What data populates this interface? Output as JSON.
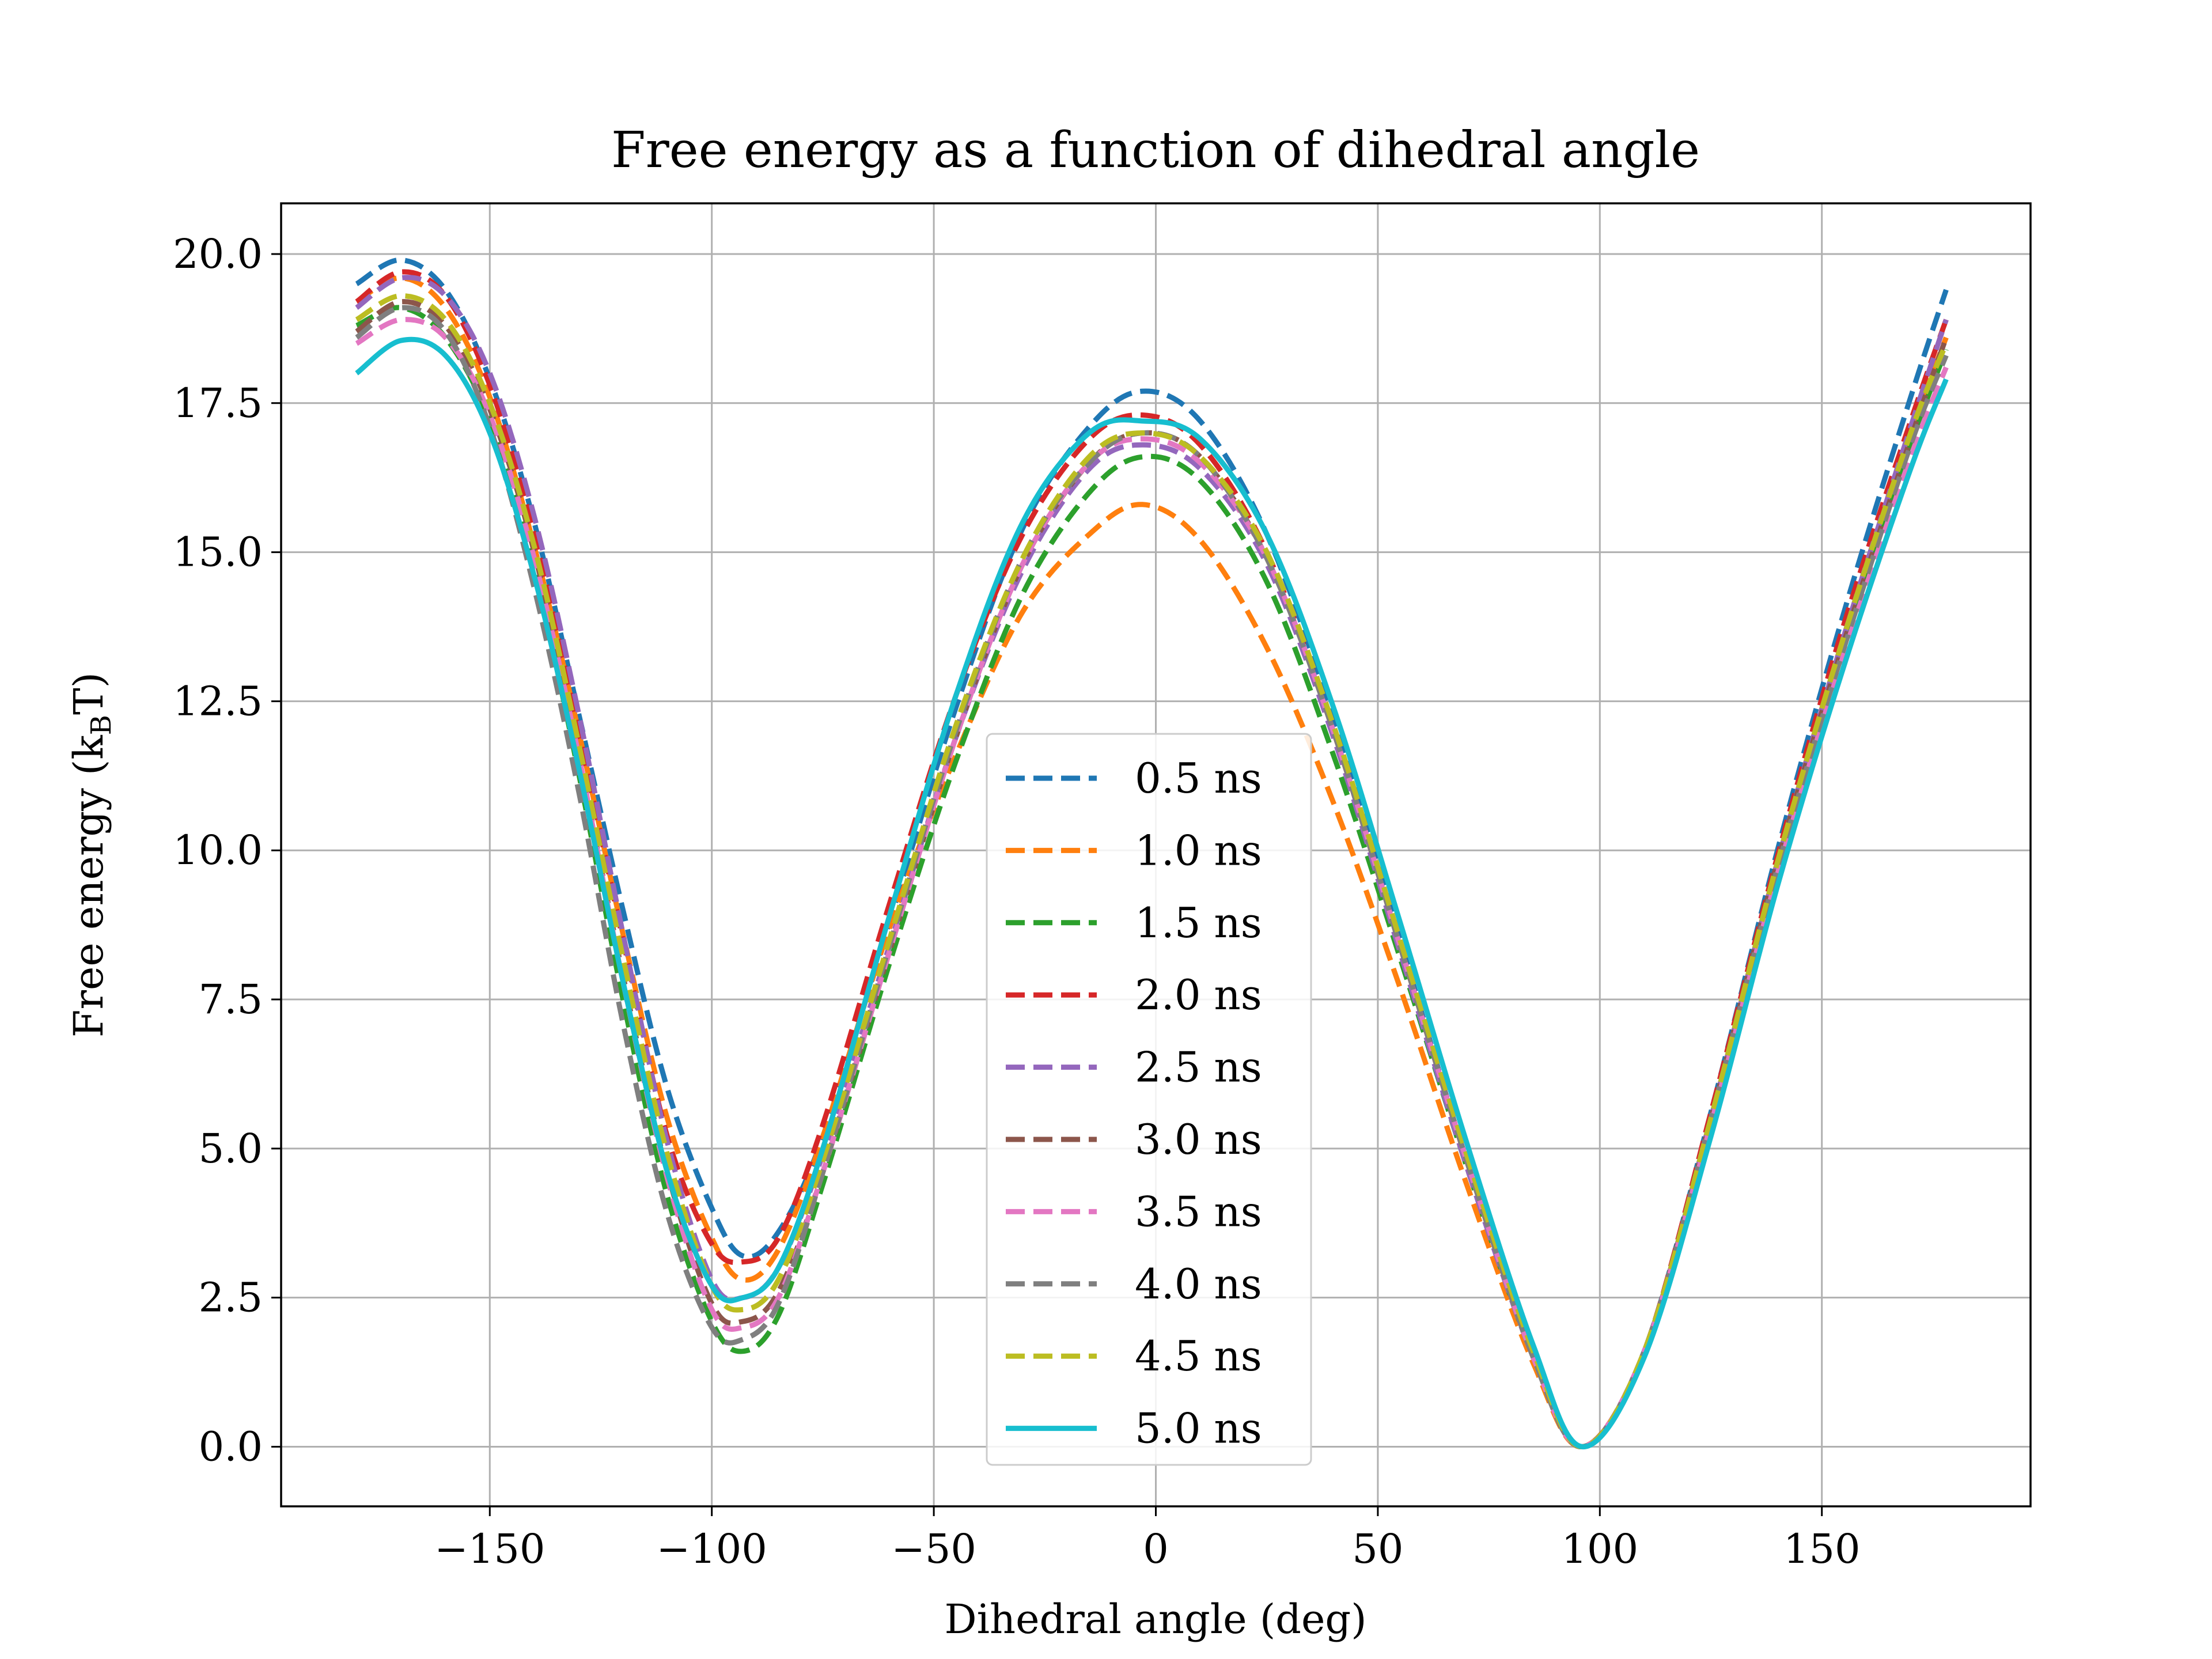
{
  "chart_data": {
    "type": "line",
    "title": "Free energy as a function of dihedral angle",
    "xlabel": "Dihedral angle (deg)",
    "ylabel_main": "Free energy (k",
    "ylabel_sub": "B",
    "ylabel_end": "T)",
    "xlim": [
      -197,
      197
    ],
    "ylim": [
      -1,
      20.85
    ],
    "grid": true,
    "legend_position": "lower-center",
    "xticks": [
      -150,
      -100,
      -50,
      0,
      50,
      100,
      150
    ],
    "xtick_labels": [
      "−150",
      "−100",
      "−50",
      "0",
      "50",
      "100",
      "150"
    ],
    "yticks": [
      0,
      2.5,
      5,
      7.5,
      10,
      12.5,
      15,
      17.5,
      20
    ],
    "ytick_labels": [
      "0.0",
      "2.5",
      "5.0",
      "7.5",
      "10.0",
      "12.5",
      "15.0",
      "17.5",
      "20.0"
    ],
    "x": [
      -180,
      -170,
      -160,
      -150,
      -140,
      -130,
      -120,
      -110,
      -100,
      -93,
      -85,
      -75,
      -60,
      -45,
      -30,
      -15,
      -3,
      10,
      25,
      40,
      55,
      70,
      85,
      96,
      110,
      125,
      140,
      155,
      170,
      178
    ],
    "series": [
      {
        "name": "0.5 ns",
        "color": "#1f77b4",
        "dashed": true,
        "values": [
          19.5,
          19.9,
          19.4,
          17.9,
          15.5,
          12.3,
          9.0,
          6.0,
          4.0,
          3.2,
          3.6,
          5.2,
          8.8,
          12.4,
          15.4,
          17.1,
          17.7,
          17.2,
          15.3,
          12.2,
          8.5,
          4.8,
          1.6,
          0.0,
          1.6,
          5.6,
          10.0,
          14.0,
          17.6,
          19.4
        ]
      },
      {
        "name": "1.0 ns",
        "color": "#ff7f0e",
        "dashed": true,
        "values": [
          19.2,
          19.6,
          19.1,
          17.6,
          15.1,
          12.0,
          8.6,
          5.5,
          3.5,
          2.8,
          3.3,
          5.2,
          8.7,
          11.6,
          14.0,
          15.3,
          15.8,
          15.2,
          13.4,
          10.8,
          7.7,
          4.4,
          1.4,
          0.0,
          1.6,
          5.5,
          9.8,
          13.6,
          17.0,
          18.6
        ]
      },
      {
        "name": "1.5 ns",
        "color": "#2ca02c",
        "dashed": true,
        "values": [
          18.8,
          19.1,
          18.6,
          17.2,
          14.7,
          11.3,
          7.5,
          4.2,
          2.1,
          1.6,
          2.2,
          4.4,
          8.1,
          11.5,
          14.3,
          16.0,
          16.6,
          16.2,
          14.5,
          11.6,
          8.2,
          4.7,
          1.5,
          0.0,
          1.6,
          5.5,
          9.7,
          13.4,
          16.8,
          18.4
        ]
      },
      {
        "name": "2.0 ns",
        "color": "#d62728",
        "dashed": true,
        "values": [
          19.2,
          19.7,
          19.3,
          17.8,
          15.3,
          12.0,
          8.5,
          5.2,
          3.4,
          3.1,
          3.5,
          5.4,
          9.1,
          12.6,
          15.3,
          16.9,
          17.3,
          16.8,
          15.0,
          12.0,
          8.4,
          4.8,
          1.6,
          0.0,
          1.6,
          5.6,
          9.9,
          13.8,
          17.2,
          18.9
        ]
      },
      {
        "name": "2.5 ns",
        "color": "#9467bd",
        "dashed": true,
        "values": [
          19.1,
          19.6,
          19.3,
          18.0,
          15.6,
          12.3,
          8.6,
          5.1,
          2.8,
          2.5,
          3.0,
          4.9,
          8.4,
          11.9,
          14.7,
          16.4,
          16.8,
          16.4,
          14.8,
          11.9,
          8.3,
          4.7,
          1.5,
          0.0,
          1.6,
          5.5,
          9.8,
          13.6,
          17.1,
          18.9
        ]
      },
      {
        "name": "3.0 ns",
        "color": "#8c564b",
        "dashed": true,
        "values": [
          18.7,
          19.2,
          18.8,
          17.4,
          15.0,
          11.6,
          7.9,
          4.6,
          2.4,
          2.1,
          2.6,
          4.6,
          8.3,
          11.9,
          14.8,
          16.5,
          17.0,
          16.6,
          14.9,
          12.0,
          8.4,
          4.8,
          1.5,
          0.0,
          1.6,
          5.5,
          9.8,
          13.5,
          16.9,
          18.6
        ]
      },
      {
        "name": "3.5 ns",
        "color": "#e377c2",
        "dashed": true,
        "values": [
          18.5,
          18.9,
          18.6,
          17.3,
          14.9,
          11.6,
          7.8,
          4.5,
          2.3,
          2.0,
          2.5,
          4.6,
          8.3,
          11.9,
          14.8,
          16.5,
          16.9,
          16.5,
          14.9,
          12.0,
          8.4,
          4.8,
          1.5,
          0.0,
          1.6,
          5.4,
          9.6,
          13.3,
          16.6,
          18.1
        ]
      },
      {
        "name": "4.0 ns",
        "color": "#7f7f7f",
        "dashed": true,
        "values": [
          18.6,
          19.1,
          18.7,
          17.1,
          14.4,
          11.0,
          7.1,
          3.9,
          2.0,
          1.8,
          2.4,
          4.6,
          8.4,
          12.0,
          14.9,
          16.5,
          17.0,
          16.6,
          14.9,
          12.0,
          8.4,
          4.8,
          1.5,
          0.0,
          1.6,
          5.5,
          9.7,
          13.4,
          16.8,
          18.3
        ]
      },
      {
        "name": "4.5 ns",
        "color": "#bcbd22",
        "dashed": true,
        "values": [
          18.9,
          19.3,
          18.9,
          17.5,
          15.1,
          11.8,
          8.2,
          4.9,
          2.7,
          2.3,
          2.8,
          4.8,
          8.5,
          12.1,
          14.9,
          16.6,
          17.0,
          16.6,
          15.0,
          12.1,
          8.5,
          4.9,
          1.6,
          0.0,
          1.6,
          5.5,
          9.8,
          13.6,
          17.0,
          18.5
        ]
      },
      {
        "name": "5.0 ns",
        "color": "#17becf",
        "dashed": false,
        "values": [
          18.0,
          18.55,
          18.3,
          17.0,
          14.6,
          11.4,
          7.8,
          4.6,
          2.7,
          2.5,
          3.0,
          5.0,
          8.9,
          12.6,
          15.5,
          17.0,
          17.2,
          16.9,
          15.3,
          12.4,
          8.8,
          5.1,
          1.7,
          0.0,
          1.5,
          5.2,
          9.4,
          13.1,
          16.4,
          17.9
        ]
      }
    ]
  }
}
